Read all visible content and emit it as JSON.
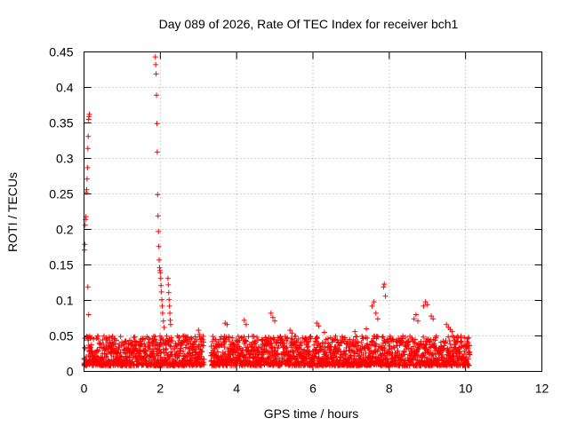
{
  "chart_data": {
    "type": "scatter",
    "title": "Day 089 of 2026, Rate Of TEC Index for receiver bch1",
    "xlabel": "GPS time / hours",
    "ylabel": "ROTI / TECUs",
    "xlim": [
      0,
      12
    ],
    "ylim": [
      0,
      0.45
    ],
    "xticks": [
      0,
      2,
      4,
      6,
      8,
      10,
      12
    ],
    "yticks": [
      0,
      0.05,
      0.1,
      0.15,
      0.2,
      0.25,
      0.3,
      0.35,
      0.4,
      0.45
    ],
    "grid": true,
    "marker": "plus",
    "color": "#ff0000",
    "series": [
      {
        "name": "ROTI",
        "points": [
          [
            0.01,
            0.171
          ],
          [
            0.02,
            0.179
          ],
          [
            0.03,
            0.206
          ],
          [
            0.04,
            0.214
          ],
          [
            0.05,
            0.218
          ],
          [
            0.06,
            0.252
          ],
          [
            0.07,
            0.256
          ],
          [
            0.08,
            0.271
          ],
          [
            0.09,
            0.287
          ],
          [
            0.1,
            0.314
          ],
          [
            0.11,
            0.331
          ],
          [
            0.12,
            0.355
          ],
          [
            0.13,
            0.359
          ],
          [
            0.14,
            0.362
          ],
          [
            0.1,
            0.119
          ],
          [
            0.12,
            0.08
          ],
          [
            0.15,
            0.05
          ],
          [
            1.87,
            0.443
          ],
          [
            1.88,
            0.432
          ],
          [
            1.89,
            0.419
          ],
          [
            1.9,
            0.389
          ],
          [
            1.91,
            0.349
          ],
          [
            1.92,
            0.309
          ],
          [
            1.93,
            0.249
          ],
          [
            1.94,
            0.219
          ],
          [
            1.95,
            0.197
          ],
          [
            1.96,
            0.176
          ],
          [
            1.97,
            0.157
          ],
          [
            1.98,
            0.146
          ],
          [
            1.99,
            0.142
          ],
          [
            2.0,
            0.139
          ],
          [
            2.01,
            0.131
          ],
          [
            2.02,
            0.121
          ],
          [
            2.03,
            0.112
          ],
          [
            2.04,
            0.101
          ],
          [
            2.05,
            0.092
          ],
          [
            2.06,
            0.082
          ],
          [
            2.08,
            0.071
          ],
          [
            2.1,
            0.062
          ],
          [
            2.2,
            0.131
          ],
          [
            2.21,
            0.122
          ],
          [
            2.22,
            0.111
          ],
          [
            2.23,
            0.101
          ],
          [
            2.24,
            0.092
          ],
          [
            2.25,
            0.082
          ],
          [
            2.26,
            0.072
          ],
          [
            2.27,
            0.066
          ],
          [
            3.0,
            0.058
          ],
          [
            3.02,
            0.052
          ],
          [
            3.7,
            0.068
          ],
          [
            3.75,
            0.066
          ],
          [
            4.2,
            0.072
          ],
          [
            4.25,
            0.066
          ],
          [
            4.9,
            0.082
          ],
          [
            4.95,
            0.076
          ],
          [
            5.0,
            0.071
          ],
          [
            6.1,
            0.068
          ],
          [
            6.15,
            0.064
          ],
          [
            6.3,
            0.055
          ],
          [
            7.1,
            0.056
          ],
          [
            7.4,
            0.06
          ],
          [
            7.55,
            0.092
          ],
          [
            7.6,
            0.098
          ],
          [
            7.65,
            0.082
          ],
          [
            7.7,
            0.074
          ],
          [
            7.85,
            0.119
          ],
          [
            7.87,
            0.123
          ],
          [
            7.9,
            0.106
          ],
          [
            8.65,
            0.074
          ],
          [
            8.7,
            0.08
          ],
          [
            8.75,
            0.071
          ],
          [
            8.9,
            0.092
          ],
          [
            8.95,
            0.098
          ],
          [
            9.0,
            0.094
          ],
          [
            9.1,
            0.078
          ],
          [
            9.15,
            0.074
          ],
          [
            9.5,
            0.066
          ],
          [
            9.55,
            0.062
          ],
          [
            9.6,
            0.059
          ],
          [
            9.65,
            0.056
          ],
          [
            1.55,
            0.045
          ],
          [
            1.2,
            0.044
          ],
          [
            0.7,
            0.038
          ],
          [
            5.4,
            0.058
          ],
          [
            5.45,
            0.054
          ]
        ],
        "dense_band": {
          "segments": [
            [
              0.0,
              3.15
            ],
            [
              3.33,
              10.12
            ]
          ],
          "baseline": 0.015,
          "typical_max": 0.05
        }
      }
    ]
  }
}
